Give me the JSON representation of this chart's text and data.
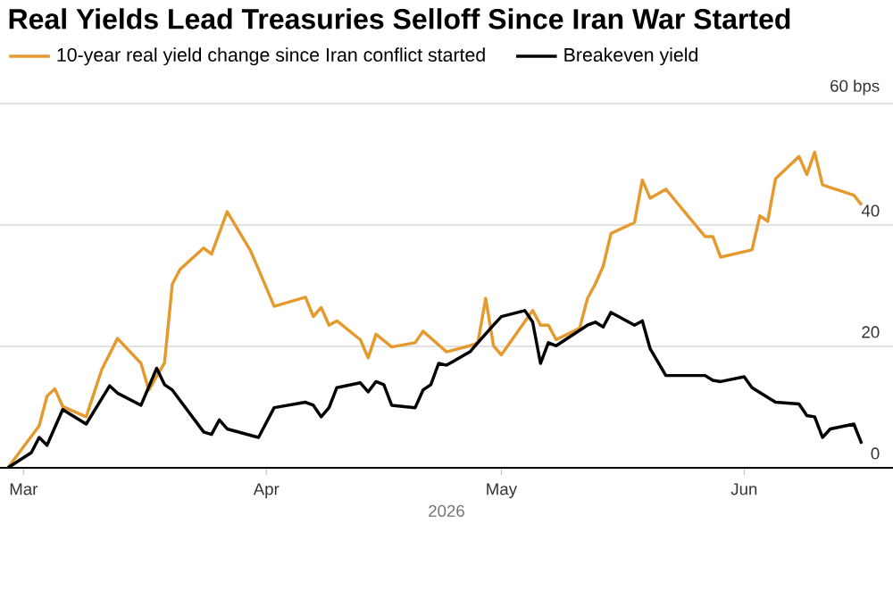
{
  "chart_data": {
    "type": "line",
    "title": "Real Yields Lead Treasuries Selloff Since Iran War Started",
    "xlabel": "2026",
    "series": [
      {
        "name": "10-year real yield change since Iran conflict started",
        "color": "#e59a2f",
        "x": [
          "2026-02-27",
          "2026-03-03",
          "2026-03-04",
          "2026-03-05",
          "2026-03-06",
          "2026-03-09",
          "2026-03-11",
          "2026-03-13",
          "2026-03-16",
          "2026-03-17",
          "2026-03-19",
          "2026-03-20",
          "2026-03-21",
          "2026-03-24",
          "2026-03-25",
          "2026-03-27",
          "2026-03-30",
          "2026-03-31",
          "2026-04-02",
          "2026-04-06",
          "2026-04-07",
          "2026-04-08",
          "2026-04-09",
          "2026-04-10",
          "2026-04-13",
          "2026-04-14",
          "2026-04-15",
          "2026-04-17",
          "2026-04-20",
          "2026-04-21",
          "2026-04-24",
          "2026-04-27",
          "2026-04-28",
          "2026-04-29",
          "2026-04-30",
          "2026-05-01",
          "2026-05-05",
          "2026-05-06",
          "2026-05-07",
          "2026-05-08",
          "2026-05-11",
          "2026-05-12",
          "2026-05-13",
          "2026-05-14",
          "2026-05-15",
          "2026-05-18",
          "2026-05-19",
          "2026-05-20",
          "2026-05-22",
          "2026-05-27",
          "2026-05-28",
          "2026-05-29",
          "2026-06-02",
          "2026-06-03",
          "2026-06-04",
          "2026-06-05",
          "2026-06-08",
          "2026-06-09",
          "2026-06-10",
          "2026-06-11",
          "2026-06-15",
          "2026-06-16"
        ],
        "values": [
          0,
          6.9,
          11.8,
          13,
          10.1,
          8.4,
          16.2,
          21.3,
          17.2,
          12.8,
          17.3,
          30.3,
          32.7,
          36.2,
          35.2,
          42.2,
          35.7,
          32.7,
          26.6,
          28.1,
          24.9,
          26.4,
          23.5,
          24.2,
          21.1,
          18.1,
          22,
          19.9,
          20.6,
          22.5,
          19.1,
          20.1,
          20.6,
          27.9,
          20.1,
          18.6,
          25.9,
          23.5,
          23.5,
          21.1,
          23,
          27.9,
          30.3,
          33.2,
          38.6,
          40.4,
          47.4,
          44.4,
          45.9,
          38.1,
          38.1,
          34.7,
          35.9,
          41.5,
          40.6,
          47.6,
          51.3,
          48.3,
          52,
          46.6,
          44.9,
          43.3
        ]
      },
      {
        "name": "Breakeven yield",
        "color": "#000000",
        "x": [
          "2026-02-27",
          "2026-03-02",
          "2026-03-03",
          "2026-03-04",
          "2026-03-06",
          "2026-03-09",
          "2026-03-12",
          "2026-03-13",
          "2026-03-16",
          "2026-03-18",
          "2026-03-19",
          "2026-03-20",
          "2026-03-24",
          "2026-03-25",
          "2026-03-26",
          "2026-03-27",
          "2026-03-31",
          "2026-04-02",
          "2026-04-06",
          "2026-04-07",
          "2026-04-08",
          "2026-04-09",
          "2026-04-10",
          "2026-04-13",
          "2026-04-14",
          "2026-04-15",
          "2026-04-16",
          "2026-04-17",
          "2026-04-20",
          "2026-04-21",
          "2026-04-22",
          "2026-04-23",
          "2026-04-24",
          "2026-04-27",
          "2026-04-28",
          "2026-04-30",
          "2026-05-01",
          "2026-05-04",
          "2026-05-05",
          "2026-05-06",
          "2026-05-07",
          "2026-05-08",
          "2026-05-12",
          "2026-05-13",
          "2026-05-14",
          "2026-05-15",
          "2026-05-18",
          "2026-05-19",
          "2026-05-20",
          "2026-05-22",
          "2026-05-27",
          "2026-05-28",
          "2026-05-29",
          "2026-06-01",
          "2026-06-02",
          "2026-06-05",
          "2026-06-08",
          "2026-06-09",
          "2026-06-10",
          "2026-06-11",
          "2026-06-12",
          "2026-06-15",
          "2026-06-16"
        ],
        "values": [
          0,
          2.5,
          5,
          3.7,
          9.6,
          7.2,
          13.5,
          12.3,
          10.3,
          16.4,
          13.7,
          12.8,
          5.9,
          5.5,
          7.9,
          6.4,
          5,
          9.9,
          10.8,
          10.3,
          8.4,
          9.9,
          13.2,
          14,
          12.5,
          14.2,
          13.7,
          10.3,
          9.9,
          12.8,
          13.7,
          17.2,
          16.9,
          19.1,
          20.6,
          23.5,
          24.9,
          25.9,
          24,
          17.2,
          20.6,
          20.1,
          23.5,
          24,
          23.2,
          25.6,
          23.5,
          24.2,
          19.6,
          15.2,
          15.2,
          14.4,
          14.2,
          15,
          13.2,
          10.8,
          10.5,
          8.6,
          8.4,
          5,
          6.4,
          7.2,
          4
        ]
      }
    ],
    "xlim": [
      "2026-02-26",
      "2026-06-20"
    ],
    "xticks": [
      {
        "value": "2026-03-01",
        "label": "Mar"
      },
      {
        "value": "2026-04-01",
        "label": "Apr"
      },
      {
        "value": "2026-05-01",
        "label": "May"
      },
      {
        "value": "2026-06-01",
        "label": "Jun"
      }
    ],
    "ylim": [
      0,
      60
    ],
    "yticks": [
      0,
      20,
      40,
      {
        "value": 60,
        "label": "60 bps"
      }
    ],
    "grid": "y",
    "legend": "top left"
  }
}
